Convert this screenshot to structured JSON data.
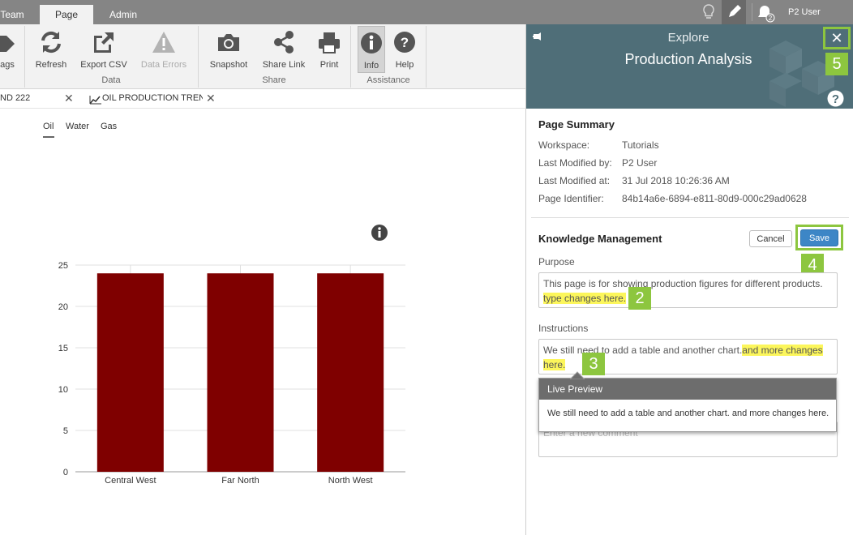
{
  "topbar": {
    "tabs": [
      "Team",
      "Page",
      "Admin"
    ],
    "active_tab": "Page",
    "notification_count": "2",
    "user_name": "P2 User"
  },
  "ribbon": {
    "buttons": {
      "tags": "ags",
      "refresh": "Refresh",
      "export_csv": "Export CSV",
      "data_errors": "Data Errors",
      "snapshot": "Snapshot",
      "share_link": "Share Link",
      "print": "Print",
      "info": "Info",
      "help": "Help"
    },
    "groups": {
      "data": "Data",
      "share": "Share",
      "assistance": "Assistance"
    }
  },
  "doc_tabs": [
    {
      "label": "ND 222"
    },
    {
      "label": "OIL PRODUCTION TREND"
    }
  ],
  "chart_data": {
    "type": "bar",
    "legend": [
      "Oil",
      "Water",
      "Gas"
    ],
    "active_legend": "Oil",
    "categories": [
      "Central West",
      "Far North",
      "North West"
    ],
    "series": [
      {
        "name": "Oil",
        "values": [
          24,
          24,
          24
        ]
      }
    ],
    "ylim": [
      0,
      25
    ],
    "yticks": [
      "0",
      "5",
      "10",
      "15",
      "20",
      "25"
    ],
    "bar_color": "#7f0000",
    "grid": true
  },
  "panel": {
    "subtitle": "Explore",
    "title": "Production Analysis",
    "header_color": "#4f6e78",
    "page_summary": {
      "title": "Page Summary",
      "rows": [
        {
          "key": "Workspace:",
          "value": "Tutorials"
        },
        {
          "key": "Last Modified by:",
          "value": "P2 User"
        },
        {
          "key": "Last Modified at:",
          "value": "31 Jul 2018 10:26:36 AM"
        },
        {
          "key": "Page Identifier:",
          "value": "84b14a6e-6894-e811-80d9-000c29ad0628"
        }
      ]
    },
    "knowledge": {
      "title": "Knowledge Management",
      "cancel": "Cancel",
      "save": "Save",
      "purpose_label": "Purpose",
      "purpose_text": "This page is  for showing production figures for different products.",
      "purpose_highlight": "type changes here.",
      "instructions_label": "Instructions",
      "instructions_text": "We still need to add a table and another chart.",
      "instructions_highlight_1": "and more changes",
      "instructions_highlight_2": "here.",
      "comment_placeholder": "Enter a new comment"
    },
    "live_preview": {
      "title": "Live Preview",
      "body": "We still need to add a table and another chart. and more changes here."
    },
    "step_badges": [
      "2",
      "3",
      "4",
      "5"
    ],
    "accent_color": "#8dc63f"
  }
}
